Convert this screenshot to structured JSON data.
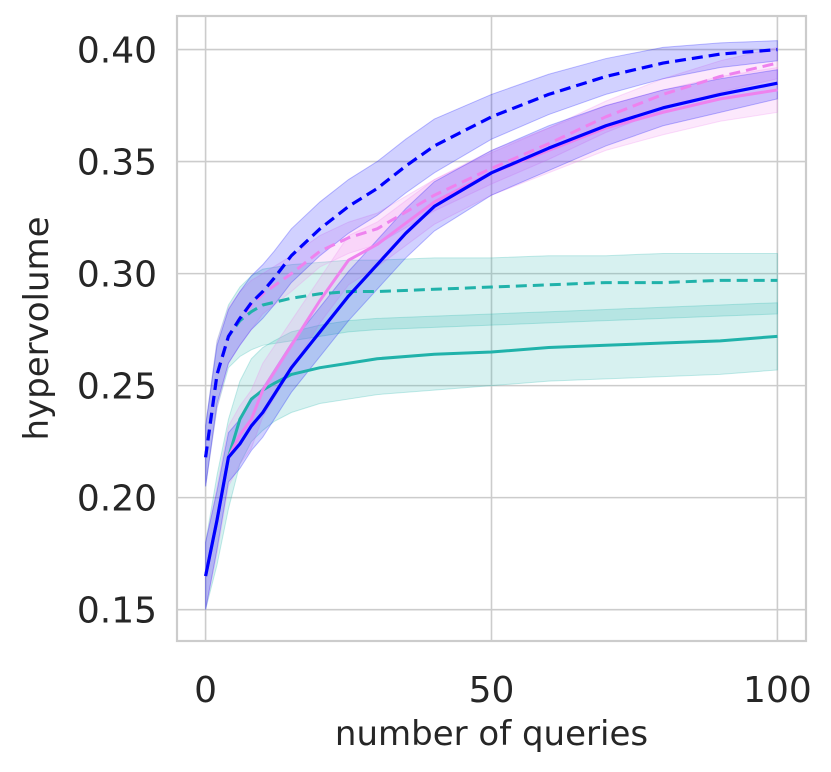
{
  "chart_data": {
    "type": "line",
    "title": "",
    "xlabel": "number of queries",
    "ylabel": "hypervolume",
    "xlim": [
      -5,
      105
    ],
    "ylim": [
      0.136,
      0.415
    ],
    "xticks": [
      0,
      50,
      100
    ],
    "xtick_labels": [
      "0",
      "50",
      "100"
    ],
    "yticks": [
      0.15,
      0.2,
      0.25,
      0.3,
      0.35,
      0.4
    ],
    "ytick_labels": [
      "0.15",
      "0.20",
      "0.25",
      "0.30",
      "0.35",
      "0.40"
    ],
    "grid": true,
    "legend": "none",
    "series": [
      {
        "name": "teal-solid",
        "color": "#20b2aa",
        "dash": "solid",
        "x": [
          0,
          2,
          4,
          6,
          8,
          10,
          12,
          15,
          20,
          25,
          30,
          40,
          50,
          60,
          70,
          80,
          90,
          100
        ],
        "y": [
          0.165,
          0.19,
          0.218,
          0.235,
          0.244,
          0.248,
          0.251,
          0.255,
          0.258,
          0.26,
          0.262,
          0.264,
          0.265,
          0.267,
          0.268,
          0.269,
          0.27,
          0.272
        ],
        "lower": [
          0.15,
          0.17,
          0.195,
          0.215,
          0.225,
          0.23,
          0.234,
          0.238,
          0.242,
          0.244,
          0.246,
          0.248,
          0.25,
          0.252,
          0.253,
          0.254,
          0.255,
          0.257
        ],
        "upper": [
          0.18,
          0.21,
          0.235,
          0.252,
          0.262,
          0.267,
          0.27,
          0.274,
          0.277,
          0.279,
          0.28,
          0.281,
          0.282,
          0.283,
          0.284,
          0.285,
          0.286,
          0.287
        ]
      },
      {
        "name": "teal-dashed",
        "color": "#20b2aa",
        "dash": "dashed",
        "x": [
          0,
          2,
          4,
          6,
          8,
          10,
          15,
          20,
          25,
          30,
          40,
          50,
          60,
          70,
          80,
          90,
          100
        ],
        "y": [
          0.218,
          0.255,
          0.272,
          0.279,
          0.283,
          0.286,
          0.289,
          0.291,
          0.292,
          0.292,
          0.293,
          0.294,
          0.295,
          0.296,
          0.296,
          0.297,
          0.297
        ],
        "lower": [
          0.205,
          0.24,
          0.258,
          0.263,
          0.266,
          0.268,
          0.27,
          0.272,
          0.274,
          0.275,
          0.276,
          0.277,
          0.278,
          0.279,
          0.28,
          0.281,
          0.282
        ],
        "upper": [
          0.232,
          0.27,
          0.286,
          0.294,
          0.299,
          0.302,
          0.304,
          0.305,
          0.306,
          0.306,
          0.307,
          0.307,
          0.308,
          0.308,
          0.309,
          0.309,
          0.309
        ]
      },
      {
        "name": "pink-solid",
        "color": "#ee82ee",
        "dash": "solid",
        "x": [
          0,
          2,
          4,
          6,
          8,
          10,
          15,
          20,
          25,
          30,
          40,
          50,
          60,
          70,
          80,
          90,
          100
        ],
        "y": [
          0.165,
          0.19,
          0.218,
          0.228,
          0.235,
          0.248,
          0.268,
          0.288,
          0.306,
          0.313,
          0.332,
          0.345,
          0.355,
          0.365,
          0.372,
          0.378,
          0.382
        ],
        "lower": [
          0.15,
          0.175,
          0.205,
          0.215,
          0.222,
          0.236,
          0.257,
          0.278,
          0.295,
          0.303,
          0.322,
          0.335,
          0.345,
          0.355,
          0.362,
          0.368,
          0.372
        ],
        "upper": [
          0.18,
          0.205,
          0.232,
          0.241,
          0.248,
          0.26,
          0.279,
          0.298,
          0.317,
          0.323,
          0.342,
          0.355,
          0.365,
          0.375,
          0.382,
          0.388,
          0.392
        ]
      },
      {
        "name": "pink-dashed",
        "color": "#ee82ee",
        "dash": "dashed",
        "x": [
          0,
          2,
          4,
          6,
          8,
          10,
          15,
          20,
          25,
          30,
          40,
          50,
          60,
          70,
          80,
          90,
          100
        ],
        "y": [
          0.218,
          0.255,
          0.272,
          0.28,
          0.286,
          0.291,
          0.3,
          0.31,
          0.316,
          0.32,
          0.335,
          0.347,
          0.358,
          0.37,
          0.38,
          0.388,
          0.394
        ],
        "lower": [
          0.205,
          0.24,
          0.26,
          0.268,
          0.275,
          0.282,
          0.292,
          0.303,
          0.309,
          0.313,
          0.328,
          0.34,
          0.351,
          0.363,
          0.373,
          0.381,
          0.387
        ],
        "upper": [
          0.232,
          0.27,
          0.285,
          0.292,
          0.297,
          0.3,
          0.308,
          0.317,
          0.323,
          0.327,
          0.342,
          0.354,
          0.365,
          0.377,
          0.387,
          0.395,
          0.401
        ]
      },
      {
        "name": "blue-solid",
        "color": "#0000ff",
        "dash": "solid",
        "x": [
          0,
          2,
          4,
          6,
          8,
          10,
          12,
          15,
          20,
          25,
          30,
          35,
          40,
          50,
          60,
          70,
          80,
          90,
          100
        ],
        "y": [
          0.165,
          0.19,
          0.218,
          0.224,
          0.232,
          0.238,
          0.246,
          0.258,
          0.274,
          0.29,
          0.304,
          0.318,
          0.33,
          0.345,
          0.356,
          0.366,
          0.374,
          0.38,
          0.385
        ],
        "lower": [
          0.15,
          0.177,
          0.207,
          0.213,
          0.221,
          0.227,
          0.235,
          0.247,
          0.263,
          0.279,
          0.293,
          0.307,
          0.319,
          0.335,
          0.346,
          0.357,
          0.366,
          0.372,
          0.378
        ],
        "upper": [
          0.18,
          0.203,
          0.229,
          0.235,
          0.243,
          0.249,
          0.257,
          0.269,
          0.285,
          0.301,
          0.315,
          0.329,
          0.341,
          0.355,
          0.366,
          0.375,
          0.382,
          0.387,
          0.391
        ]
      },
      {
        "name": "blue-dashed",
        "color": "#0000ff",
        "dash": "dashed",
        "x": [
          0,
          2,
          4,
          6,
          8,
          10,
          12,
          15,
          20,
          25,
          30,
          35,
          40,
          50,
          60,
          70,
          80,
          90,
          100
        ],
        "y": [
          0.218,
          0.255,
          0.272,
          0.28,
          0.287,
          0.292,
          0.298,
          0.308,
          0.32,
          0.33,
          0.338,
          0.348,
          0.357,
          0.37,
          0.38,
          0.388,
          0.394,
          0.398,
          0.4
        ],
        "lower": [
          0.205,
          0.242,
          0.26,
          0.268,
          0.275,
          0.28,
          0.286,
          0.296,
          0.308,
          0.318,
          0.326,
          0.336,
          0.345,
          0.36,
          0.371,
          0.38,
          0.387,
          0.392,
          0.395
        ],
        "upper": [
          0.232,
          0.268,
          0.284,
          0.292,
          0.299,
          0.304,
          0.31,
          0.32,
          0.332,
          0.342,
          0.35,
          0.36,
          0.369,
          0.38,
          0.389,
          0.396,
          0.401,
          0.403,
          0.404
        ]
      }
    ]
  }
}
